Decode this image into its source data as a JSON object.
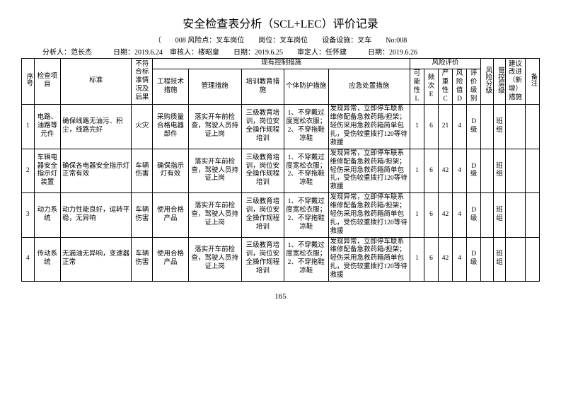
{
  "title": "安全检查表分析（SCL+LEC）评价记录",
  "meta1": "（　　008 风险点：叉车岗位　　岗位：叉车岗位　　设备设施：叉车　　No:008",
  "meta2": "分析人：范长杰　　　日期：2019.6.24　审核人：楼昭皇　　日期：2019.6.25　　审定人：任怀建　　　日期：2019.6.26",
  "headers": {
    "h_seq": "序号",
    "h_item": "检查项目",
    "h_standard": "标准",
    "h_nonconform": "不符合标准情况及后果",
    "h_current": "现有控制措施",
    "h_eng": "工程技术措施",
    "h_mgmt": "管理措施",
    "h_edu": "培训教育措施",
    "h_ppe": "个体防护措施",
    "h_emerg": "应急处置措施",
    "h_riskeval": "风险评价",
    "h_L": "可能性L",
    "h_E": "频次E",
    "h_C": "严重性C",
    "h_D": "风险值D",
    "h_level": "评价级别",
    "h_ctrl_level": "管控层级",
    "h_risk_level": "风险分级",
    "h_suggest": "建议改进（新增）措施",
    "h_remark": "备注"
  },
  "rows": [
    {
      "seq": "1",
      "item": "电路、油路等元件",
      "standard": "确保线路无油污、积尘，线路完好",
      "nonconform": "火灾",
      "eng": "采购质量合格电器部件",
      "mgmt": "落实开车前检查，驾驶人员持证上岗",
      "edu": "三级教育培训，岗位安全操作规程培训",
      "ppe": "1、不穿戴过度宽松衣服；2、不穿拖鞋凉鞋",
      "emerg": "发现异常，立即停车联系维修配备急救药箱/担架；轻伤采用急救药箱简单包扎，受伤较重拨打120等待救援",
      "L": "1",
      "E": "6",
      "C": "21",
      "D": "4",
      "level": "D级",
      "ctrl": "班组"
    },
    {
      "seq": "2",
      "item": "车辆电器安全指示灯装置",
      "standard": "确保各电器安全指示灯正常有效",
      "nonconform": "车辆伤害",
      "eng": "确保指示灯有效",
      "mgmt": "落实开车前检查，驾驶人员持证上岗",
      "edu": "三级教育培训，岗位安全操作规程培训",
      "ppe": "1、不穿戴过度宽松衣服；2、不穿拖鞋凉鞋",
      "emerg": "发现异常，立即停车联系维修配备急救药箱/担架；轻伤采用急救药箱简单包扎，受伤较重拨打120等待救援",
      "L": "1",
      "E": "6",
      "C": "42",
      "D": "4",
      "level": "D级",
      "ctrl": "班组"
    },
    {
      "seq": "3",
      "item": "动力系统",
      "standard": "动力性能良好，运转平稳，无异响",
      "nonconform": "车辆伤害",
      "eng": "使用合格产品",
      "mgmt": "落实开车前检查，驾驶人员持证上岗",
      "edu": "三级教育培训，岗位安全操作规程培训",
      "ppe": "1、不穿戴过度宽松衣服；2、不穿拖鞋凉鞋",
      "emerg": "发现异常，立即停车联系维修配备急救药箱/担架；轻伤采用急救药箱简单包扎，受伤较重拨打120等待救援",
      "L": "1",
      "E": "6",
      "C": "42",
      "D": "4",
      "level": "D级",
      "ctrl": "班组"
    },
    {
      "seq": "4",
      "item": "传动系统",
      "standard": "无漏油无异响，变速器正常",
      "nonconform": "车辆伤害",
      "eng": "使用合格产品",
      "mgmt": "落实开车前检查，驾驶人员持证上岗",
      "edu": "三级教育培训，岗位安全操作规程培训",
      "ppe": "1、不穿戴过度宽松衣服；2、不穿拖鞋凉鞋",
      "emerg": "发现异常，立即停车联系维修配备急救药箱/担架；轻伤采用急救药箱简单包扎，受伤较重拨打120等待救援",
      "L": "1",
      "E": "6",
      "C": "42",
      "D": "4",
      "level": "D级",
      "ctrl": "班组"
    }
  ],
  "pageNum": "165"
}
